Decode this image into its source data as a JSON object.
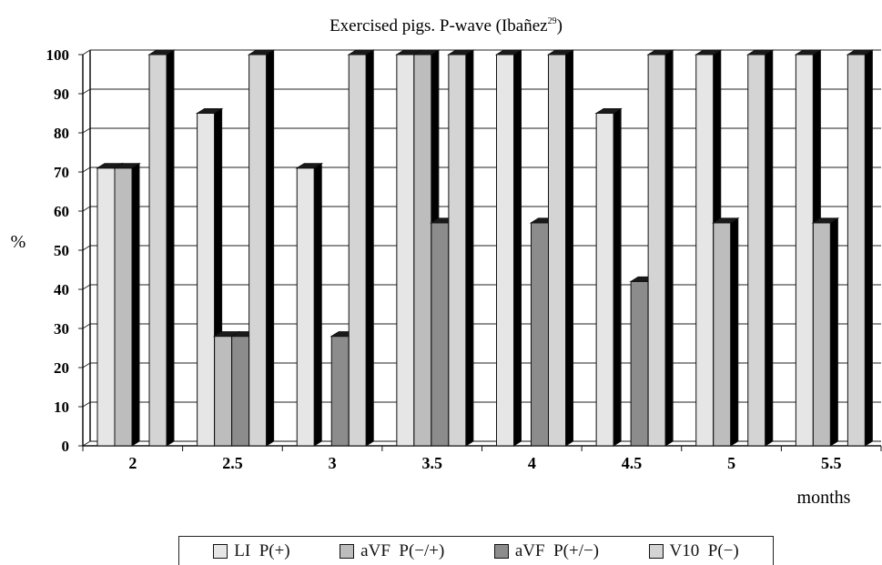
{
  "chart_data": {
    "type": "bar",
    "style": "3d",
    "title_text": "Exercised pigs. P-wave (Ibañez",
    "title_superscript": "29",
    "title_close": ")",
    "ylabel": "%",
    "xlabel": "months",
    "ylim": [
      0,
      100
    ],
    "yticks": [
      "0",
      "10",
      "20",
      "30",
      "40",
      "50",
      "60",
      "70",
      "80",
      "90",
      "100"
    ],
    "grid": true,
    "legend_position": "bottom",
    "categories": [
      "2",
      "2.5",
      "3",
      "3.5",
      "4",
      "4.5",
      "5",
      "5.5"
    ],
    "series": [
      {
        "name": "LI  P(+)",
        "color": "#e6e6e6",
        "values": [
          71,
          85,
          71,
          100,
          100,
          85,
          100,
          100
        ]
      },
      {
        "name": "aVF  P(−/+)",
        "color": "#bdbdbd",
        "values": [
          71,
          28,
          0,
          100,
          0,
          0,
          57,
          57
        ]
      },
      {
        "name": "aVF  P(+/−)",
        "color": "#8c8c8c",
        "values": [
          0,
          28,
          28,
          57,
          57,
          42,
          0,
          0
        ]
      },
      {
        "name": "V10  P(−)",
        "color": "#d4d4d4",
        "values": [
          100,
          100,
          100,
          100,
          100,
          100,
          100,
          100
        ]
      }
    ]
  }
}
